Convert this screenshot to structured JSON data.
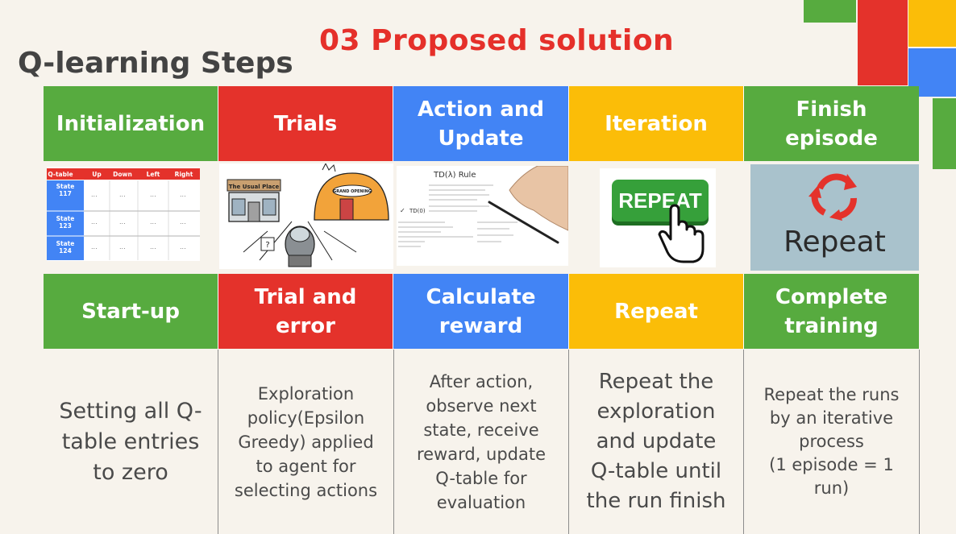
{
  "slide": {
    "title": "03 Proposed solution",
    "subtitle": "Q-learning Steps"
  },
  "colors": {
    "green": "#57ab3f",
    "red": "#e4322b",
    "blue": "#4284f5",
    "yellow": "#fbbd08",
    "title_red": "#e5302a"
  },
  "steps": [
    {
      "header": "Initialization",
      "label": "Start-up",
      "description": "Setting all Q-\ntable entries\nto zero",
      "color": "green"
    },
    {
      "header": "Trials",
      "label": "Trial and\nerror",
      "description": "Exploration\npolicy(Epsilon\nGreedy) applied\nto agent for\nselecting actions",
      "color": "red"
    },
    {
      "header": "Action and\nUpdate",
      "label": "Calculate\nreward",
      "description": "After action,\nobserve next\nstate, receive\nreward, update\nQ-table for\nevaluation",
      "color": "blue"
    },
    {
      "header": "Iteration",
      "label": "Repeat",
      "description": "Repeat the\nexploration\nand update\nQ-table until\nthe run finish",
      "color": "yellow"
    },
    {
      "header": "Finish\nepisode",
      "label": "Complete\ntraining",
      "description": "Repeat the runs\nby an iterative\nprocess\n(1 episode = 1\nrun)",
      "color": "green"
    }
  ],
  "qtable": {
    "columns": [
      "Q-table",
      "Up",
      "Down",
      "Left",
      "Right"
    ],
    "rows": [
      {
        "state": "State\n117",
        "cells": [
          "...",
          "...",
          "...",
          "..."
        ]
      },
      {
        "state": "State\n123",
        "cells": [
          "...",
          "...",
          "...",
          "..."
        ]
      },
      {
        "state": "State\n124",
        "cells": [
          "...",
          "...",
          "...",
          "..."
        ]
      }
    ]
  },
  "images": {
    "trials": {
      "sign1": "The Usual Place",
      "sign2": "GRAND OPENING",
      "agent_mark": "?"
    },
    "td_rule": {
      "heading": "TD(λ) Rule",
      "side_label": "TD(0)",
      "check": "✓"
    },
    "repeat_button": {
      "label": "REPEAT"
    },
    "repeat_icon": {
      "label": "Repeat"
    }
  }
}
